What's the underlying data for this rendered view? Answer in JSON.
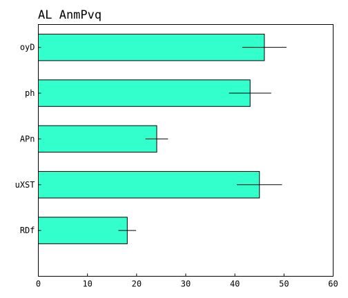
{
  "chart_data": {
    "type": "bar",
    "orientation": "horizontal",
    "title": "AL AnmPvq",
    "xlabel": "",
    "ylabel": "",
    "categories": [
      "oyD",
      "ph",
      "APn",
      "uXST",
      "RDf"
    ],
    "values": [
      46.0,
      43.1,
      24.1,
      45.0,
      18.1
    ],
    "errors": [
      4.5,
      4.3,
      2.3,
      4.6,
      1.8
    ],
    "xlim": [
      0,
      60
    ],
    "xticks": [
      "0",
      "10",
      "20",
      "30",
      "40",
      "50",
      "60"
    ],
    "grid": false,
    "bar_color": "#33ffcc",
    "edge_color": "#000000",
    "error_color": "#000000"
  }
}
